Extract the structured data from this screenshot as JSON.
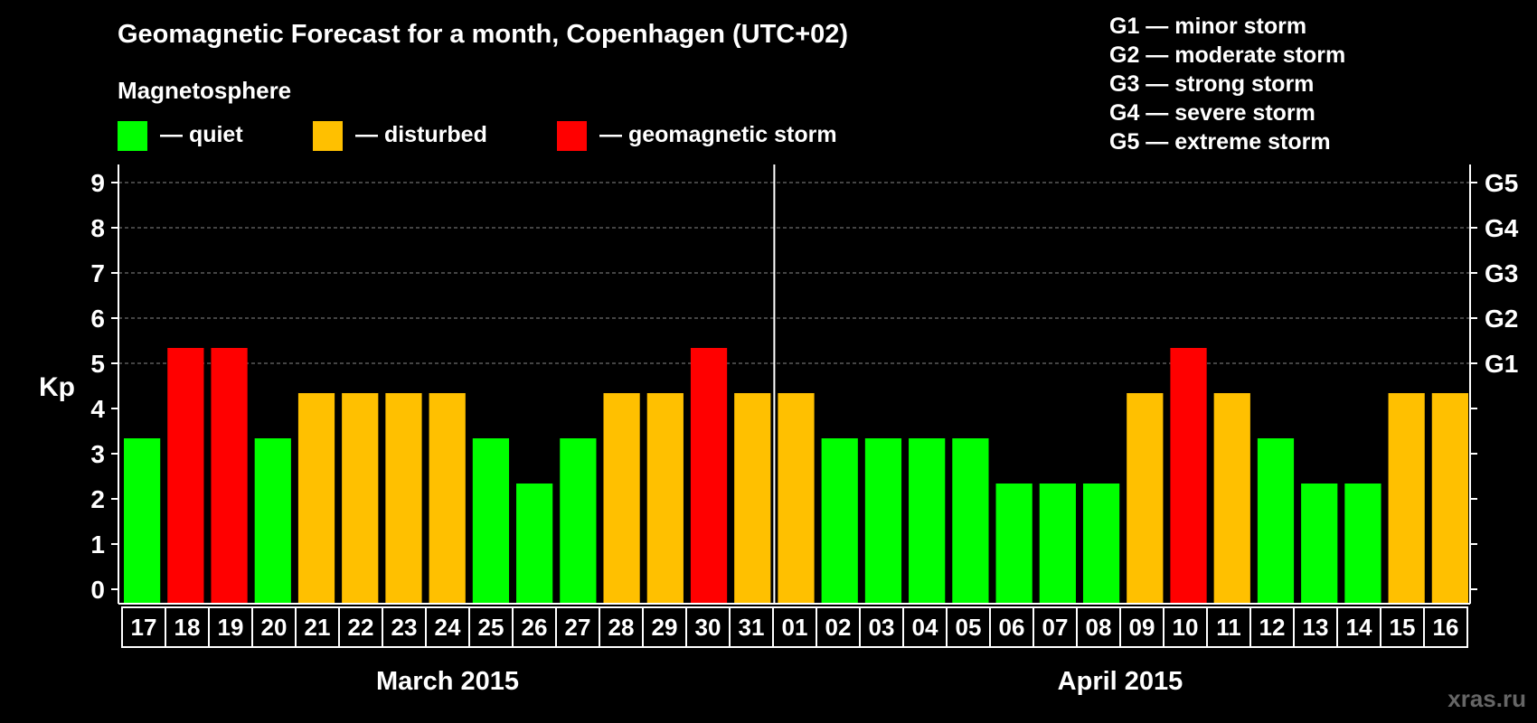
{
  "colors": {
    "background": "#000000",
    "quiet": "#00ff00",
    "disturbed": "#ffc000",
    "storm": "#ff0000",
    "axis": "#ffffff",
    "grid": "#888888",
    "watermark": "#666666"
  },
  "legend": {
    "section_title": "Magnetosphere",
    "items": [
      {
        "key": "quiet",
        "label": "— quiet"
      },
      {
        "key": "disturbed",
        "label": "— disturbed"
      },
      {
        "key": "storm",
        "label": "— geomagnetic storm"
      }
    ],
    "storm_scale": [
      "G1 — minor storm",
      "G2 — moderate storm",
      "G3 — strong storm",
      "G4 — severe storm",
      "G5 — extreme storm"
    ]
  },
  "watermark": "xras.ru",
  "chart_data": {
    "type": "bar",
    "title": "Geomagnetic Forecast for a month, Copenhagen (UTC+02)",
    "ylabel": "Kp",
    "ylim": [
      0,
      9
    ],
    "yticks": [
      0,
      1,
      2,
      3,
      4,
      5,
      6,
      7,
      8,
      9
    ],
    "grid_levels": [
      5,
      6,
      7,
      8,
      9
    ],
    "right_axis_labels": [
      {
        "kp": 5,
        "label": "G1"
      },
      {
        "kp": 6,
        "label": "G2"
      },
      {
        "kp": 7,
        "label": "G3"
      },
      {
        "kp": 8,
        "label": "G4"
      },
      {
        "kp": 9,
        "label": "G5"
      }
    ],
    "months": [
      {
        "label": "March 2015",
        "start_index": 0,
        "count": 15
      },
      {
        "label": "April 2015",
        "start_index": 15,
        "count": 16
      }
    ],
    "categories": [
      "17",
      "18",
      "19",
      "20",
      "21",
      "22",
      "23",
      "24",
      "25",
      "26",
      "27",
      "28",
      "29",
      "30",
      "31",
      "01",
      "02",
      "03",
      "04",
      "05",
      "06",
      "07",
      "08",
      "09",
      "10",
      "11",
      "12",
      "13",
      "14",
      "15",
      "16"
    ],
    "values": [
      3,
      5,
      5,
      3,
      4,
      4,
      4,
      4,
      3,
      2,
      3,
      4,
      4,
      5,
      4,
      4,
      3,
      3,
      3,
      3,
      2,
      2,
      2,
      4,
      5,
      4,
      3,
      2,
      2,
      4,
      4
    ],
    "status": [
      "quiet",
      "storm",
      "storm",
      "quiet",
      "disturbed",
      "disturbed",
      "disturbed",
      "disturbed",
      "quiet",
      "quiet",
      "quiet",
      "disturbed",
      "disturbed",
      "storm",
      "disturbed",
      "disturbed",
      "quiet",
      "quiet",
      "quiet",
      "quiet",
      "quiet",
      "quiet",
      "quiet",
      "disturbed",
      "storm",
      "disturbed",
      "quiet",
      "quiet",
      "quiet",
      "disturbed",
      "disturbed"
    ]
  }
}
